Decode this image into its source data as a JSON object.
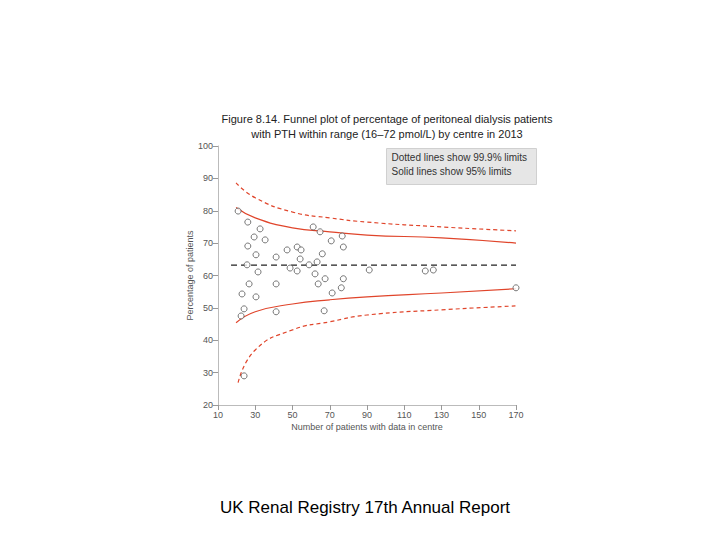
{
  "chart_data": {
    "type": "scatter",
    "title": "Figure 8.14. Funnel plot of percentage of peritoneal dialysis patients\nwith PTH within range (16–72 pmol/L) by centre in 2013",
    "footer": "UK Renal Registry 17th Annual Report",
    "xlabel": "Number of patients with data in centre",
    "ylabel": "Percentage of patients",
    "annotations": [
      "Dotted lines show 99.9% limits",
      "Solid lines show 95% limits"
    ],
    "xlim": [
      10,
      170
    ],
    "xticks": [
      10,
      30,
      50,
      70,
      90,
      110,
      130,
      150,
      170
    ],
    "ylim": [
      20,
      100
    ],
    "yticks": [
      20,
      30,
      40,
      50,
      60,
      70,
      80,
      90,
      100
    ],
    "grid": false,
    "series": [
      {
        "type": "scatter",
        "marker": "open_circle",
        "color": "#555555",
        "x": [
          20.8,
          26,
          32.6,
          29.4,
          35.3,
          26,
          30.4,
          41.2,
          25.6,
          31.5,
          47.1,
          52.5,
          54.6,
          54.1,
          48.7,
          52.5,
          58.9,
          61.1,
          64.8,
          70.8,
          76.7,
          77.3,
          66,
          63.2,
          62.1,
          67.5,
          77.3,
          76.2,
          71.3,
          63.8,
          67,
          41.2,
          41.2,
          26.7,
          22.9,
          30.4,
          24,
          22.4,
          91.2,
          121.3,
          125.6,
          170,
          24
        ],
        "values": [
          79.9,
          76.5,
          74.4,
          71.9,
          71,
          69.1,
          66.4,
          65.7,
          63.3,
          61.1,
          67.9,
          68.8,
          67.9,
          65.1,
          62.3,
          61.4,
          63.3,
          75,
          73.5,
          70.7,
          72.2,
          68.8,
          66.7,
          64.2,
          60.5,
          59,
          59,
          56.2,
          54.6,
          57.4,
          49.1,
          48.8,
          57.4,
          57.4,
          54.3,
          53.4,
          49.7,
          47.5,
          61.7,
          61.4,
          61.7,
          56.2,
          29
        ]
      },
      {
        "type": "line",
        "line_style": "dashed",
        "color": "#222222",
        "x": [
          17,
          170
        ],
        "values": [
          63.2,
          63.2
        ]
      },
      {
        "type": "line",
        "line_style": "solid",
        "color": "#e0452b",
        "x": [
          19.7,
          30,
          50,
          70,
          90,
          130,
          170
        ],
        "values": [
          81,
          77.8,
          74.7,
          73.5,
          72.5,
          71.6,
          70
        ]
      },
      {
        "type": "line",
        "line_style": "solid",
        "color": "#e0452b",
        "x": [
          19.7,
          30,
          50,
          70,
          90,
          130,
          170
        ],
        "values": [
          45.4,
          48.8,
          51.2,
          52.5,
          53.4,
          54.6,
          55.9
        ]
      },
      {
        "type": "line",
        "line_style": "dotted",
        "color": "#e0452b",
        "x": [
          19.7,
          30,
          50,
          70,
          90,
          130,
          170
        ],
        "values": [
          88.6,
          84,
          79.6,
          77.8,
          76.5,
          75,
          73.8
        ]
      },
      {
        "type": "line",
        "line_style": "dotted",
        "color": "#e0452b",
        "x": [
          20.8,
          30,
          50,
          70,
          90,
          130,
          170
        ],
        "values": [
          26.9,
          37,
          43.2,
          45.7,
          47.8,
          49.4,
          50.6
        ]
      }
    ]
  }
}
